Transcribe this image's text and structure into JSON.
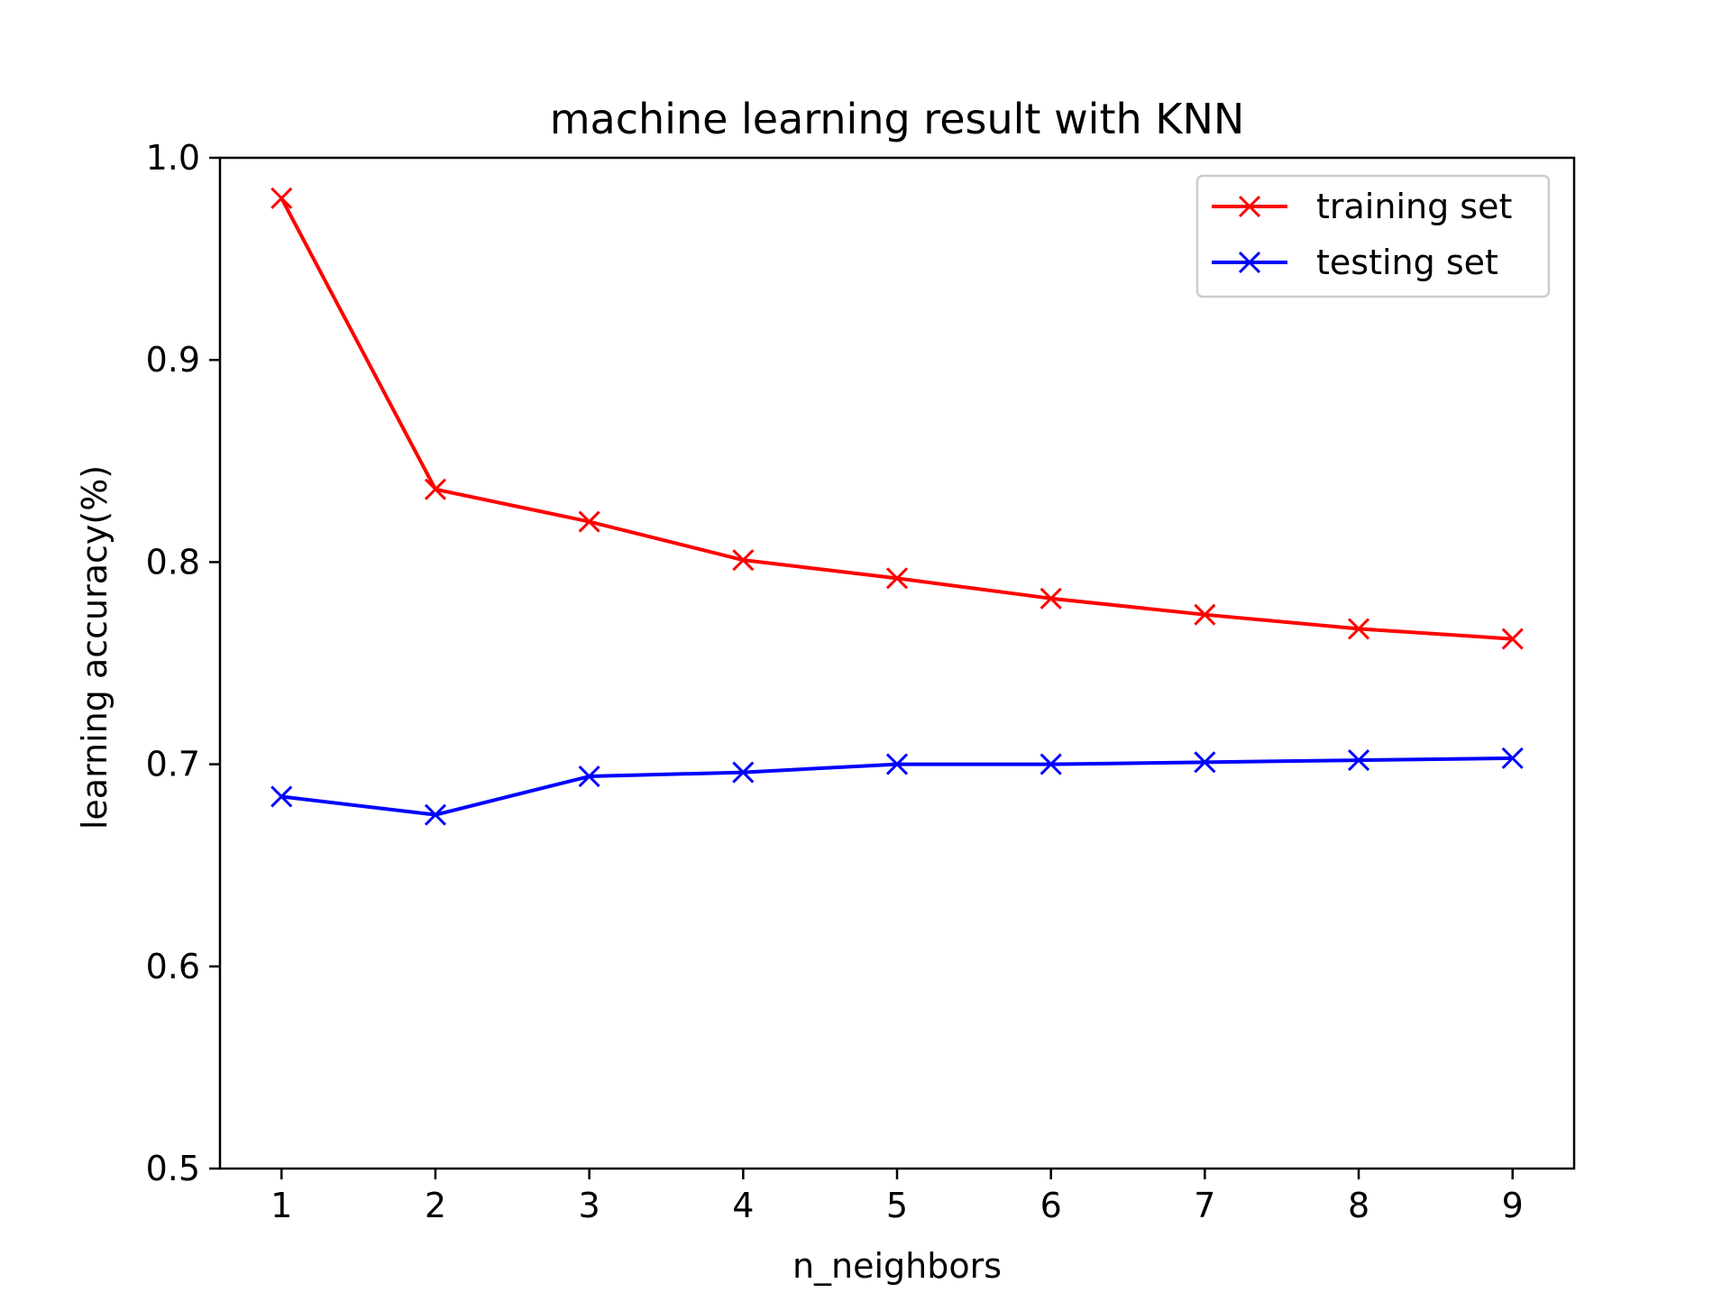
{
  "chart_data": {
    "type": "line",
    "title": "machine learning result with KNN",
    "xlabel": "n_neighbors",
    "ylabel": "learning accuracy(%)",
    "x": [
      1,
      2,
      3,
      4,
      5,
      6,
      7,
      8,
      9
    ],
    "xticks": [
      "1",
      "2",
      "3",
      "4",
      "5",
      "6",
      "7",
      "8",
      "9"
    ],
    "yticks": [
      "0.5",
      "0.6",
      "0.7",
      "0.8",
      "0.9",
      "1.0"
    ],
    "xlim": [
      0.6,
      9.4
    ],
    "ylim": [
      0.5,
      1.0
    ],
    "grid": false,
    "legend_position": "top-right",
    "series": [
      {
        "name": "training set",
        "color": "#ff0000",
        "marker": "x",
        "values": [
          0.98,
          0.836,
          0.82,
          0.801,
          0.792,
          0.782,
          0.774,
          0.767,
          0.762
        ]
      },
      {
        "name": "testing set",
        "color": "#0000ff",
        "marker": "x",
        "values": [
          0.684,
          0.675,
          0.694,
          0.696,
          0.7,
          0.7,
          0.701,
          0.702,
          0.703
        ]
      }
    ]
  }
}
